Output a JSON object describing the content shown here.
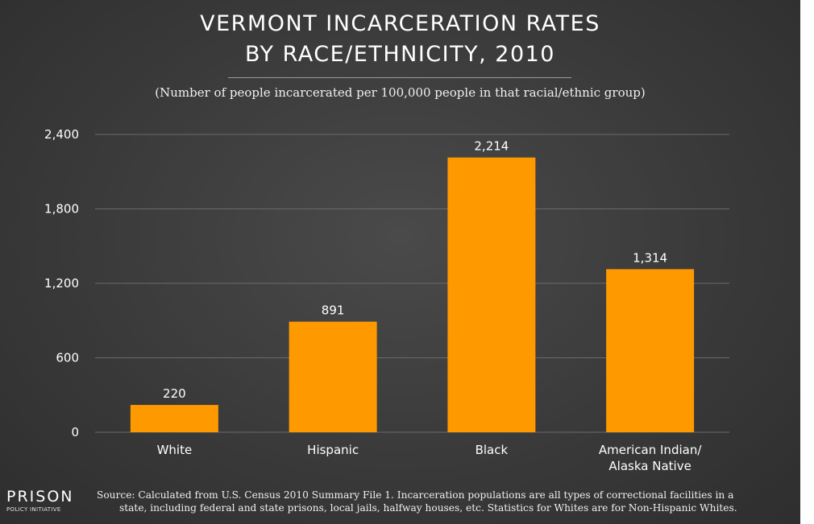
{
  "header": {
    "title_line1": "VERMONT INCARCERATION RATES",
    "title_line2": "BY RACE/ETHNICITY, 2010",
    "subtitle": "(Number of people incarcerated per 100,000 people in that racial/ethnic group)"
  },
  "chart_data": {
    "type": "bar",
    "title": "VERMONT INCARCERATION RATES BY RACE/ETHNICITY, 2010",
    "subtitle": "(Number of people incarcerated per 100,000 people in that racial/ethnic group)",
    "categories": [
      [
        "White"
      ],
      [
        "Hispanic"
      ],
      [
        "Black"
      ],
      [
        "American Indian/",
        "Alaska Native"
      ]
    ],
    "values": [
      220,
      891,
      2214,
      1314
    ],
    "value_labels": [
      "220",
      "891",
      "2,214",
      "1,314"
    ],
    "yticks": [
      0,
      600,
      1200,
      1800,
      2400
    ],
    "ytick_labels": [
      "0",
      "600",
      "1,200",
      "1,800",
      "2,400"
    ],
    "ylim": [
      0,
      2400
    ],
    "xlabel": "",
    "ylabel": "",
    "grid": true,
    "legend": "none",
    "bar_color": "#ff9900"
  },
  "footer": {
    "logo_main": "PRISON",
    "logo_sub": "POLICY INITIATIVE",
    "source_line1": "Source: Calculated from U.S. Census 2010 Summary File 1. Incarceration populations are all types of correctional facilities in a",
    "source_line2": "state, including federal and state prisons, local jails, halfway houses, etc. Statistics for Whites are for Non-Hispanic Whites."
  },
  "colors": {
    "background": "#3d3d3d",
    "bar": "#ff9900",
    "gridline": "#6a6a6a",
    "text": "#ffffff"
  }
}
